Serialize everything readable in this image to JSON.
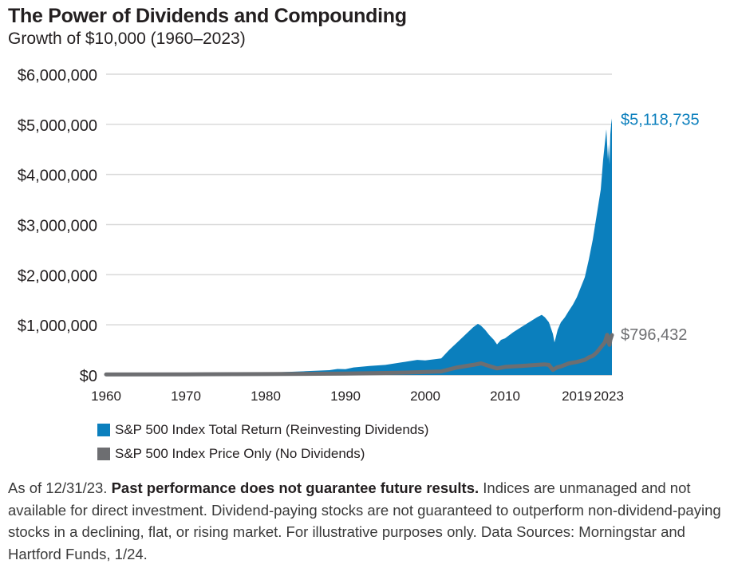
{
  "header": {
    "title": "The Power of Dividends and Compounding",
    "subtitle": "Growth of $10,000 (1960–2023)"
  },
  "colors": {
    "total_return": "#0b7fbd",
    "price_only": "#6d6e71",
    "gridline": "#d9d9d9"
  },
  "chart_data": {
    "type": "area",
    "title": "The Power of Dividends and Compounding",
    "subtitle": "Growth of $10,000 (1960–2023)",
    "ylim": [
      0,
      6000000
    ],
    "xlim": [
      1960,
      2023.4
    ],
    "y_ticks": [
      {
        "value": 0,
        "label": "$0"
      },
      {
        "value": 1000000,
        "label": "$1,000,000"
      },
      {
        "value": 2000000,
        "label": "$2,000,000"
      },
      {
        "value": 3000000,
        "label": "$3,000,000"
      },
      {
        "value": 4000000,
        "label": "$4,000,000"
      },
      {
        "value": 5000000,
        "label": "$5,000,000"
      },
      {
        "value": 6000000,
        "label": "$6,000,000"
      }
    ],
    "x_ticks": [
      {
        "value": 1960,
        "label": "1960"
      },
      {
        "value": 1970,
        "label": "1970"
      },
      {
        "value": 1980,
        "label": "1980"
      },
      {
        "value": 1990,
        "label": "1990"
      },
      {
        "value": 2000,
        "label": "2000"
      },
      {
        "value": 2010,
        "label": "2010"
      },
      {
        "value": 2019,
        "label": "2019"
      },
      {
        "value": 2023,
        "label": "2023"
      }
    ],
    "grid": true,
    "series": [
      {
        "name": "S&P 500 Index Total Return (Reinvesting Dividends)",
        "end_label": "$5,118,735",
        "points": [
          [
            1960,
            10000
          ],
          [
            1965,
            18000
          ],
          [
            1970,
            25000
          ],
          [
            1975,
            30000
          ],
          [
            1980,
            45000
          ],
          [
            1985,
            75000
          ],
          [
            1988,
            95000
          ],
          [
            1989,
            120000
          ],
          [
            1990,
            115000
          ],
          [
            1991,
            150000
          ],
          [
            1993,
            180000
          ],
          [
            1995,
            200000
          ],
          [
            1997,
            250000
          ],
          [
            1999,
            300000
          ],
          [
            2000,
            290000
          ],
          [
            2001,
            310000
          ],
          [
            2002,
            330000
          ],
          [
            2003,
            500000
          ],
          [
            2004,
            650000
          ],
          [
            2005,
            800000
          ],
          [
            2006,
            950000
          ],
          [
            2006.6,
            1020000
          ],
          [
            2007,
            980000
          ],
          [
            2007.5,
            900000
          ],
          [
            2008,
            800000
          ],
          [
            2008.6,
            700000
          ],
          [
            2009,
            610000
          ],
          [
            2009.5,
            700000
          ],
          [
            2010,
            730000
          ],
          [
            2011,
            850000
          ],
          [
            2012,
            950000
          ],
          [
            2013,
            1050000
          ],
          [
            2014,
            1150000
          ],
          [
            2014.6,
            1200000
          ],
          [
            2015,
            1150000
          ],
          [
            2015.5,
            1050000
          ],
          [
            2016,
            820000
          ],
          [
            2016.2,
            650000
          ],
          [
            2016.6,
            900000
          ],
          [
            2017,
            1050000
          ],
          [
            2017.5,
            1150000
          ],
          [
            2018,
            1280000
          ],
          [
            2018.5,
            1400000
          ],
          [
            2019,
            1550000
          ],
          [
            2019.5,
            1750000
          ],
          [
            2020,
            1950000
          ],
          [
            2020.5,
            2300000
          ],
          [
            2021,
            2700000
          ],
          [
            2021.5,
            3200000
          ],
          [
            2022,
            3700000
          ],
          [
            2022.3,
            4300000
          ],
          [
            2022.7,
            4900000
          ],
          [
            2022.9,
            4300000
          ],
          [
            2023,
            4600000
          ],
          [
            2023.1,
            4200000
          ],
          [
            2023.2,
            4800000
          ],
          [
            2023.3,
            5000000
          ],
          [
            2023.4,
            5118735
          ]
        ]
      },
      {
        "name": "S&P 500 Index Price Only (No Dividends)",
        "end_label": "$796,432",
        "points": [
          [
            1960,
            10000
          ],
          [
            1970,
            12000
          ],
          [
            1980,
            17000
          ],
          [
            1985,
            22000
          ],
          [
            1990,
            28000
          ],
          [
            1995,
            40000
          ],
          [
            1998,
            50000
          ],
          [
            2000,
            60000
          ],
          [
            2002,
            70000
          ],
          [
            2004,
            150000
          ],
          [
            2006,
            200000
          ],
          [
            2007,
            230000
          ],
          [
            2008,
            180000
          ],
          [
            2009,
            130000
          ],
          [
            2010,
            160000
          ],
          [
            2012,
            180000
          ],
          [
            2014,
            200000
          ],
          [
            2015,
            210000
          ],
          [
            2015.5,
            200000
          ],
          [
            2016,
            100000
          ],
          [
            2016.5,
            150000
          ],
          [
            2017,
            170000
          ],
          [
            2018,
            230000
          ],
          [
            2019,
            260000
          ],
          [
            2020,
            300000
          ],
          [
            2020.5,
            350000
          ],
          [
            2021,
            380000
          ],
          [
            2021.5,
            450000
          ],
          [
            2022,
            550000
          ],
          [
            2022.5,
            650000
          ],
          [
            2022.8,
            800000
          ],
          [
            2023,
            650000
          ],
          [
            2023.1,
            600000
          ],
          [
            2023.2,
            700000
          ],
          [
            2023.4,
            796432
          ]
        ]
      }
    ]
  },
  "legend": {
    "total_return_label": "S&P 500 Index Total Return (Reinvesting Dividends)",
    "price_only_label": "S&P 500 Index Price Only (No Dividends)"
  },
  "footnote": {
    "lead": "As of 12/31/23. ",
    "bold": "Past performance does not guarantee future results.",
    "rest": " Indices are unmanaged and not available for direct investment. Dividend-paying stocks are not guaranteed to outperform non-dividend-paying stocks in a declining, flat, or rising market. For illustrative purposes only. Data Sources: Morningstar and Hartford Funds, 1/24."
  }
}
